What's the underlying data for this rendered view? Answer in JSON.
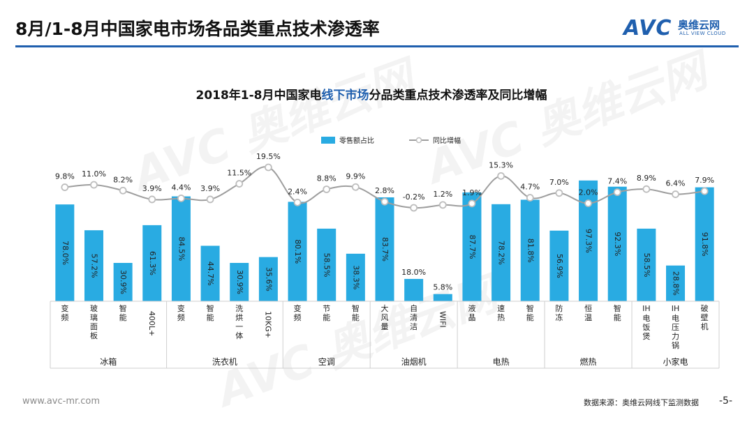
{
  "header": {
    "title": "8月/1-8月中国家电市场各品类重点技术渗透率",
    "brand": "AVC",
    "brand_cn": "奥维云网",
    "brand_en": "ALL VIEW CLOUD"
  },
  "footer": {
    "url": "www.avc-mr.com",
    "source": "数据来源：奥维云网线下监测数据",
    "page": "-5-"
  },
  "chart_data": {
    "type": "bar",
    "title_parts": [
      "2018年1-8月中国家电",
      "线下市场",
      "分品类重点技术渗透率及同比增幅"
    ],
    "highlight_color": "#1f5fae",
    "bar_color": "#29abe2",
    "line_color": "#9e9e9e",
    "legend": [
      "零售额占比",
      "同比增幅"
    ],
    "categories": [
      "变频",
      "玻璃面板",
      "智能",
      "400L+",
      "变频",
      "智能",
      "洗烘一体",
      "10KG+",
      "变频",
      "节能",
      "智能",
      "大风量",
      "自清洁",
      "WIFI",
      "液晶",
      "速热",
      "智能",
      "防冻",
      "恒温",
      "智能",
      "IH电饭煲",
      "IH电压力锅",
      "破壁机"
    ],
    "category_lines": [
      [
        "变",
        "频"
      ],
      [
        "玻",
        "璃",
        "面",
        "板"
      ],
      [
        "智",
        "能"
      ],
      [
        "400L+"
      ],
      [
        "变",
        "频"
      ],
      [
        "智",
        "能"
      ],
      [
        "洗",
        "烘",
        "一",
        "体"
      ],
      [
        "10KG+"
      ],
      [
        "变",
        "频"
      ],
      [
        "节",
        "能"
      ],
      [
        "智",
        "能"
      ],
      [
        "大",
        "风",
        "量"
      ],
      [
        "自",
        "清",
        "洁"
      ],
      [
        "WIFI"
      ],
      [
        "液",
        "晶"
      ],
      [
        "速",
        "热"
      ],
      [
        "智",
        "能"
      ],
      [
        "防",
        "冻"
      ],
      [
        "恒",
        "温"
      ],
      [
        "智",
        "能"
      ],
      [
        "IH",
        "电",
        "饭",
        "煲"
      ],
      [
        "IH",
        "电",
        "压",
        "力",
        "锅"
      ],
      [
        "破",
        "壁",
        "机"
      ]
    ],
    "groups": [
      {
        "name": "冰箱",
        "count": 4
      },
      {
        "name": "洗衣机",
        "count": 4
      },
      {
        "name": "空调",
        "count": 3
      },
      {
        "name": "油烟机",
        "count": 3
      },
      {
        "name": "电热",
        "count": 3
      },
      {
        "name": "燃热",
        "count": 3
      },
      {
        "name": "小家电",
        "count": 3
      }
    ],
    "series": [
      {
        "name": "零售额占比",
        "type": "bar",
        "values": [
          78.0,
          57.2,
          30.9,
          61.3,
          84.5,
          44.7,
          30.9,
          35.6,
          80.1,
          58.5,
          38.3,
          83.7,
          18.0,
          5.8,
          87.7,
          78.2,
          81.8,
          56.9,
          97.3,
          92.3,
          58.5,
          28.8,
          91.8
        ],
        "labels": [
          "78.0%",
          "57.2%",
          "30.9%",
          "61.3%",
          "84.5%",
          "44.7%",
          "30.9%",
          "35.6%",
          "80.1%",
          "58.5%",
          "38.3%",
          "83.7%",
          "18.0%",
          "5.8%",
          "87.7%",
          "78.2%",
          "81.8%",
          "56.9%",
          "97.3%",
          "92.3%",
          "58.5%",
          "28.8%",
          "91.8%"
        ]
      },
      {
        "name": "同比增幅",
        "type": "line",
        "values": [
          9.8,
          11.0,
          8.2,
          3.9,
          4.4,
          3.9,
          11.5,
          19.5,
          2.4,
          8.8,
          9.9,
          2.8,
          -0.2,
          1.2,
          1.9,
          15.3,
          4.7,
          7.0,
          2.0,
          7.4,
          8.9,
          6.4,
          7.9
        ],
        "labels": [
          "9.8%",
          "11.0%",
          "8.2%",
          "3.9%",
          "4.4%",
          "3.9%",
          "11.5%",
          "19.5%",
          "2.4%",
          "8.8%",
          "9.9%",
          "2.8%",
          "-0.2%",
          "1.2%",
          "1.9%",
          "15.3%",
          "4.7%",
          "7.0%",
          "2.0%",
          "7.4%",
          "8.9%",
          "6.4%",
          "7.9%"
        ]
      }
    ]
  }
}
